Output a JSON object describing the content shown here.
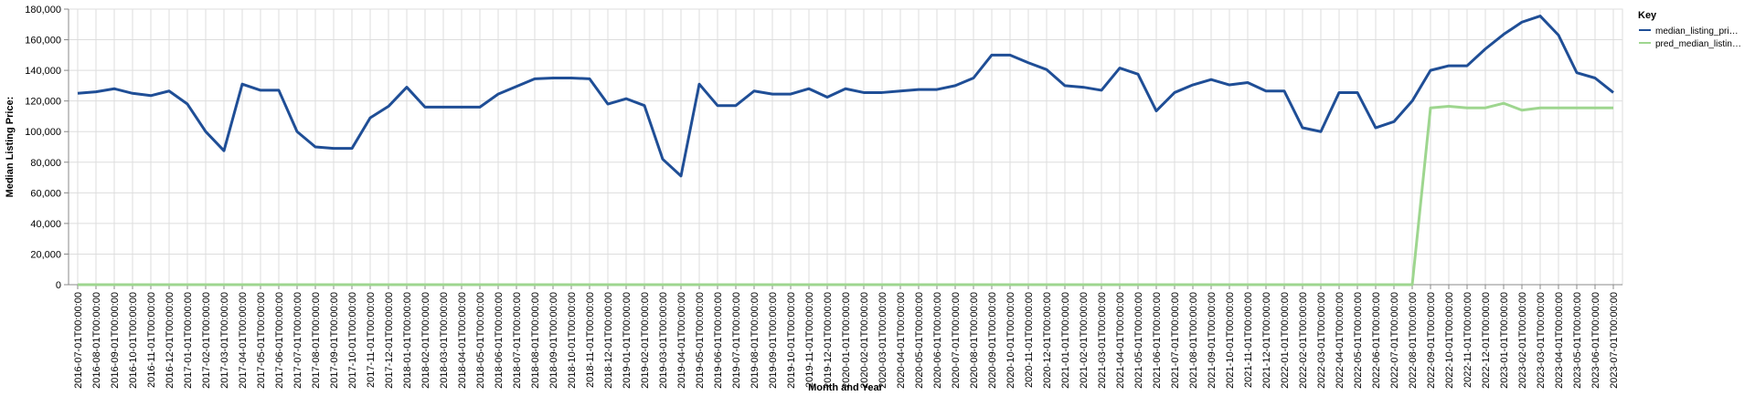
{
  "chart_data": {
    "type": "line",
    "xlabel": "Month and Year",
    "ylabel": "Median Listing Price:",
    "ylim": [
      0,
      180000
    ],
    "yticks": [
      "0",
      "20,000",
      "40,000",
      "60,000",
      "80,000",
      "100,000",
      "120,000",
      "140,000",
      "160,000",
      "180,000"
    ],
    "grid": true,
    "legend": {
      "title": "Key",
      "placement": "right"
    },
    "x": [
      "2016-07-01T00:00:00",
      "2016-08-01T00:00:00",
      "2016-09-01T00:00:00",
      "2016-10-01T00:00:00",
      "2016-11-01T00:00:00",
      "2016-12-01T00:00:00",
      "2017-01-01T00:00:00",
      "2017-02-01T00:00:00",
      "2017-03-01T00:00:00",
      "2017-04-01T00:00:00",
      "2017-05-01T00:00:00",
      "2017-06-01T00:00:00",
      "2017-07-01T00:00:00",
      "2017-08-01T00:00:00",
      "2017-09-01T00:00:00",
      "2017-10-01T00:00:00",
      "2017-11-01T00:00:00",
      "2017-12-01T00:00:00",
      "2018-01-01T00:00:00",
      "2018-02-01T00:00:00",
      "2018-03-01T00:00:00",
      "2018-04-01T00:00:00",
      "2018-05-01T00:00:00",
      "2018-06-01T00:00:00",
      "2018-07-01T00:00:00",
      "2018-08-01T00:00:00",
      "2018-09-01T00:00:00",
      "2018-10-01T00:00:00",
      "2018-11-01T00:00:00",
      "2018-12-01T00:00:00",
      "2019-01-01T00:00:00",
      "2019-02-01T00:00:00",
      "2019-03-01T00:00:00",
      "2019-04-01T00:00:00",
      "2019-05-01T00:00:00",
      "2019-06-01T00:00:00",
      "2019-07-01T00:00:00",
      "2019-08-01T00:00:00",
      "2019-09-01T00:00:00",
      "2019-10-01T00:00:00",
      "2019-11-01T00:00:00",
      "2019-12-01T00:00:00",
      "2020-01-01T00:00:00",
      "2020-02-01T00:00:00",
      "2020-03-01T00:00:00",
      "2020-04-01T00:00:00",
      "2020-05-01T00:00:00",
      "2020-06-01T00:00:00",
      "2020-07-01T00:00:00",
      "2020-08-01T00:00:00",
      "2020-09-01T00:00:00",
      "2020-10-01T00:00:00",
      "2020-11-01T00:00:00",
      "2020-12-01T00:00:00",
      "2021-01-01T00:00:00",
      "2021-02-01T00:00:00",
      "2021-03-01T00:00:00",
      "2021-04-01T00:00:00",
      "2021-05-01T00:00:00",
      "2021-06-01T00:00:00",
      "2021-07-01T00:00:00",
      "2021-08-01T00:00:00",
      "2021-09-01T00:00:00",
      "2021-10-01T00:00:00",
      "2021-11-01T00:00:00",
      "2021-12-01T00:00:00",
      "2022-01-01T00:00:00",
      "2022-02-01T00:00:00",
      "2022-03-01T00:00:00",
      "2022-04-01T00:00:00",
      "2022-05-01T00:00:00",
      "2022-06-01T00:00:00",
      "2022-07-01T00:00:00",
      "2022-08-01T00:00:00",
      "2022-09-01T00:00:00",
      "2022-10-01T00:00:00",
      "2022-11-01T00:00:00",
      "2022-12-01T00:00:00",
      "2023-01-01T00:00:00",
      "2023-02-01T00:00:00",
      "2023-03-01T00:00:00",
      "2023-04-01T00:00:00",
      "2023-05-01T00:00:00",
      "2023-06-01T00:00:00",
      "2023-07-01T00:00:00"
    ],
    "series": [
      {
        "name": "median_listing_pri…",
        "color": "#1f4e96",
        "values": [
          125000,
          126000,
          128000,
          125000,
          123500,
          126500,
          118000,
          100000,
          87500,
          131000,
          127000,
          127000,
          100000,
          90000,
          89000,
          89000,
          109000,
          116500,
          129000,
          116000,
          116000,
          116000,
          116000,
          124500,
          129500,
          134500,
          135000,
          135000,
          134500,
          118000,
          121500,
          117000,
          82000,
          71000,
          131000,
          117000,
          117000,
          126500,
          124500,
          124500,
          128000,
          122500,
          128000,
          125500,
          125500,
          126500,
          127500,
          127500,
          130000,
          135000,
          150000,
          150000,
          145000,
          140500,
          130000,
          129000,
          127000,
          141500,
          137500,
          113500,
          125500,
          130500,
          134000,
          130500,
          132000,
          126500,
          126500,
          102500,
          100000,
          125500,
          125500,
          102500,
          106500,
          120000,
          140000,
          143000,
          143000,
          154000,
          163500,
          171500,
          175500,
          163000,
          138500,
          135000,
          125500
        ]
      },
      {
        "name": "pred_median_listin…",
        "color": "#9ed68f",
        "values": [
          0,
          0,
          0,
          0,
          0,
          0,
          0,
          0,
          0,
          0,
          0,
          0,
          0,
          0,
          0,
          0,
          0,
          0,
          0,
          0,
          0,
          0,
          0,
          0,
          0,
          0,
          0,
          0,
          0,
          0,
          0,
          0,
          0,
          0,
          0,
          0,
          0,
          0,
          0,
          0,
          0,
          0,
          0,
          0,
          0,
          0,
          0,
          0,
          0,
          0,
          0,
          0,
          0,
          0,
          0,
          0,
          0,
          0,
          0,
          0,
          0,
          0,
          0,
          0,
          0,
          0,
          0,
          0,
          0,
          0,
          0,
          0,
          0,
          0,
          115500,
          116500,
          115500,
          115500,
          118500,
          114000,
          115500,
          115500,
          115500,
          115500,
          115500
        ]
      }
    ]
  }
}
